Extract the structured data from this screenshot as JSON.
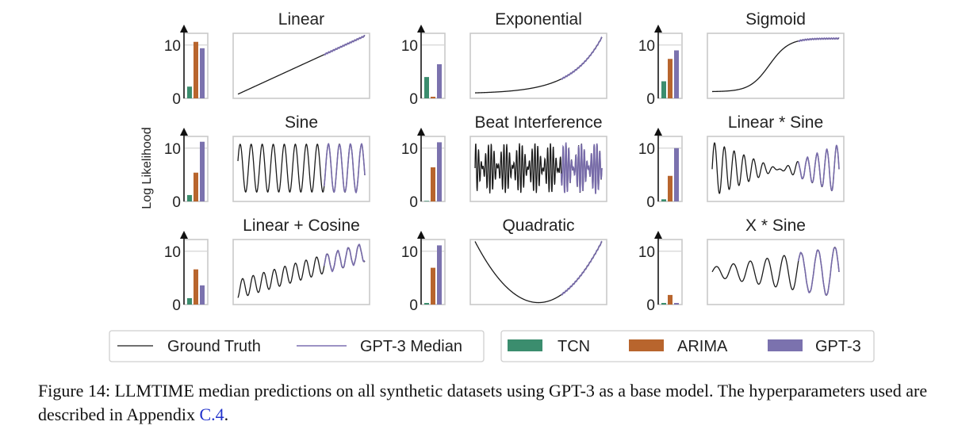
{
  "figure": {
    "ylabel": "Log Likelihood",
    "legend": {
      "lines": [
        {
          "label": "Ground Truth",
          "color": "#1a1a1a"
        },
        {
          "label": "GPT-3 Median",
          "color": "#7b6fb0"
        }
      ],
      "bars": [
        {
          "label": "TCN",
          "color": "#3b8d6e"
        },
        {
          "label": "ARIMA",
          "color": "#b8652d"
        },
        {
          "label": "GPT-3",
          "color": "#7b72ae"
        }
      ]
    },
    "caption": {
      "prefix": "Figure 14: ",
      "llm": "LLMT",
      "time": "IME",
      "part1": " median predictions on all synthetic datasets using GPT-3 as a base model. The hyperparameters used are described in Appendix ",
      "ref": "C.4",
      "suffix": "."
    }
  },
  "chart_data": [
    {
      "type": "bar",
      "title": "Linear",
      "categories": [
        "TCN",
        "ARIMA",
        "GPT-3"
      ],
      "values": [
        2.2,
        10.6,
        9.4
      ],
      "ylim": [
        0,
        12.2
      ],
      "yticks": [
        "0",
        "10"
      ],
      "series_type": "line",
      "forecast_start": 0.68,
      "gpt3_median_tracks_ground_truth": true
    },
    {
      "type": "bar",
      "title": "Exponential",
      "categories": [
        "TCN",
        "ARIMA",
        "GPT-3"
      ],
      "values": [
        4.0,
        0.3,
        6.4
      ],
      "ylim": [
        0,
        12.2
      ],
      "yticks": [
        "0",
        "10"
      ],
      "series_type": "line",
      "forecast_start": 0.68
    },
    {
      "type": "bar",
      "title": "Sigmoid",
      "categories": [
        "TCN",
        "ARIMA",
        "GPT-3"
      ],
      "values": [
        3.2,
        7.4,
        9.0
      ],
      "ylim": [
        0,
        12.2
      ],
      "yticks": [
        "0",
        "10"
      ],
      "series_type": "line",
      "forecast_start": 0.68
    },
    {
      "type": "bar",
      "title": "Sine",
      "categories": [
        "TCN",
        "ARIMA",
        "GPT-3"
      ],
      "values": [
        1.2,
        5.4,
        11.2
      ],
      "ylim": [
        0,
        12.2
      ],
      "yticks": [
        "0",
        "10"
      ],
      "series_type": "line",
      "forecast_start": 0.68
    },
    {
      "type": "bar",
      "title": "Beat Interference",
      "categories": [
        "TCN",
        "ARIMA",
        "GPT-3"
      ],
      "values": [
        0.0,
        6.4,
        11.1
      ],
      "ylim": [
        0,
        12.2
      ],
      "yticks": [
        "0",
        "10"
      ],
      "series_type": "line",
      "forecast_start": 0.68
    },
    {
      "type": "bar",
      "title": "Linear * Sine",
      "categories": [
        "TCN",
        "ARIMA",
        "GPT-3"
      ],
      "values": [
        0.4,
        4.8,
        10.0
      ],
      "ylim": [
        0,
        12.2
      ],
      "yticks": [
        "0",
        "10"
      ],
      "series_type": "line",
      "forecast_start": 0.68
    },
    {
      "type": "bar",
      "title": "Linear + Cosine",
      "categories": [
        "TCN",
        "ARIMA",
        "GPT-3"
      ],
      "values": [
        1.2,
        6.6,
        3.6
      ],
      "ylim": [
        0,
        12.2
      ],
      "yticks": [
        "0",
        "10"
      ],
      "series_type": "line",
      "forecast_start": 0.68
    },
    {
      "type": "bar",
      "title": "Quadratic",
      "categories": [
        "TCN",
        "ARIMA",
        "GPT-3"
      ],
      "values": [
        0.3,
        6.9,
        11.1
      ],
      "ylim": [
        0,
        12.2
      ],
      "yticks": [
        "0",
        "10"
      ],
      "series_type": "line",
      "forecast_start": 0.68
    },
    {
      "type": "bar",
      "title": "X * Sine",
      "categories": [
        "TCN",
        "ARIMA",
        "GPT-3"
      ],
      "values": [
        0.3,
        1.8,
        0.3
      ],
      "ylim": [
        0,
        12.2
      ],
      "yticks": [
        "0",
        "10"
      ],
      "series_type": "line",
      "forecast_start": 0.68
    }
  ]
}
